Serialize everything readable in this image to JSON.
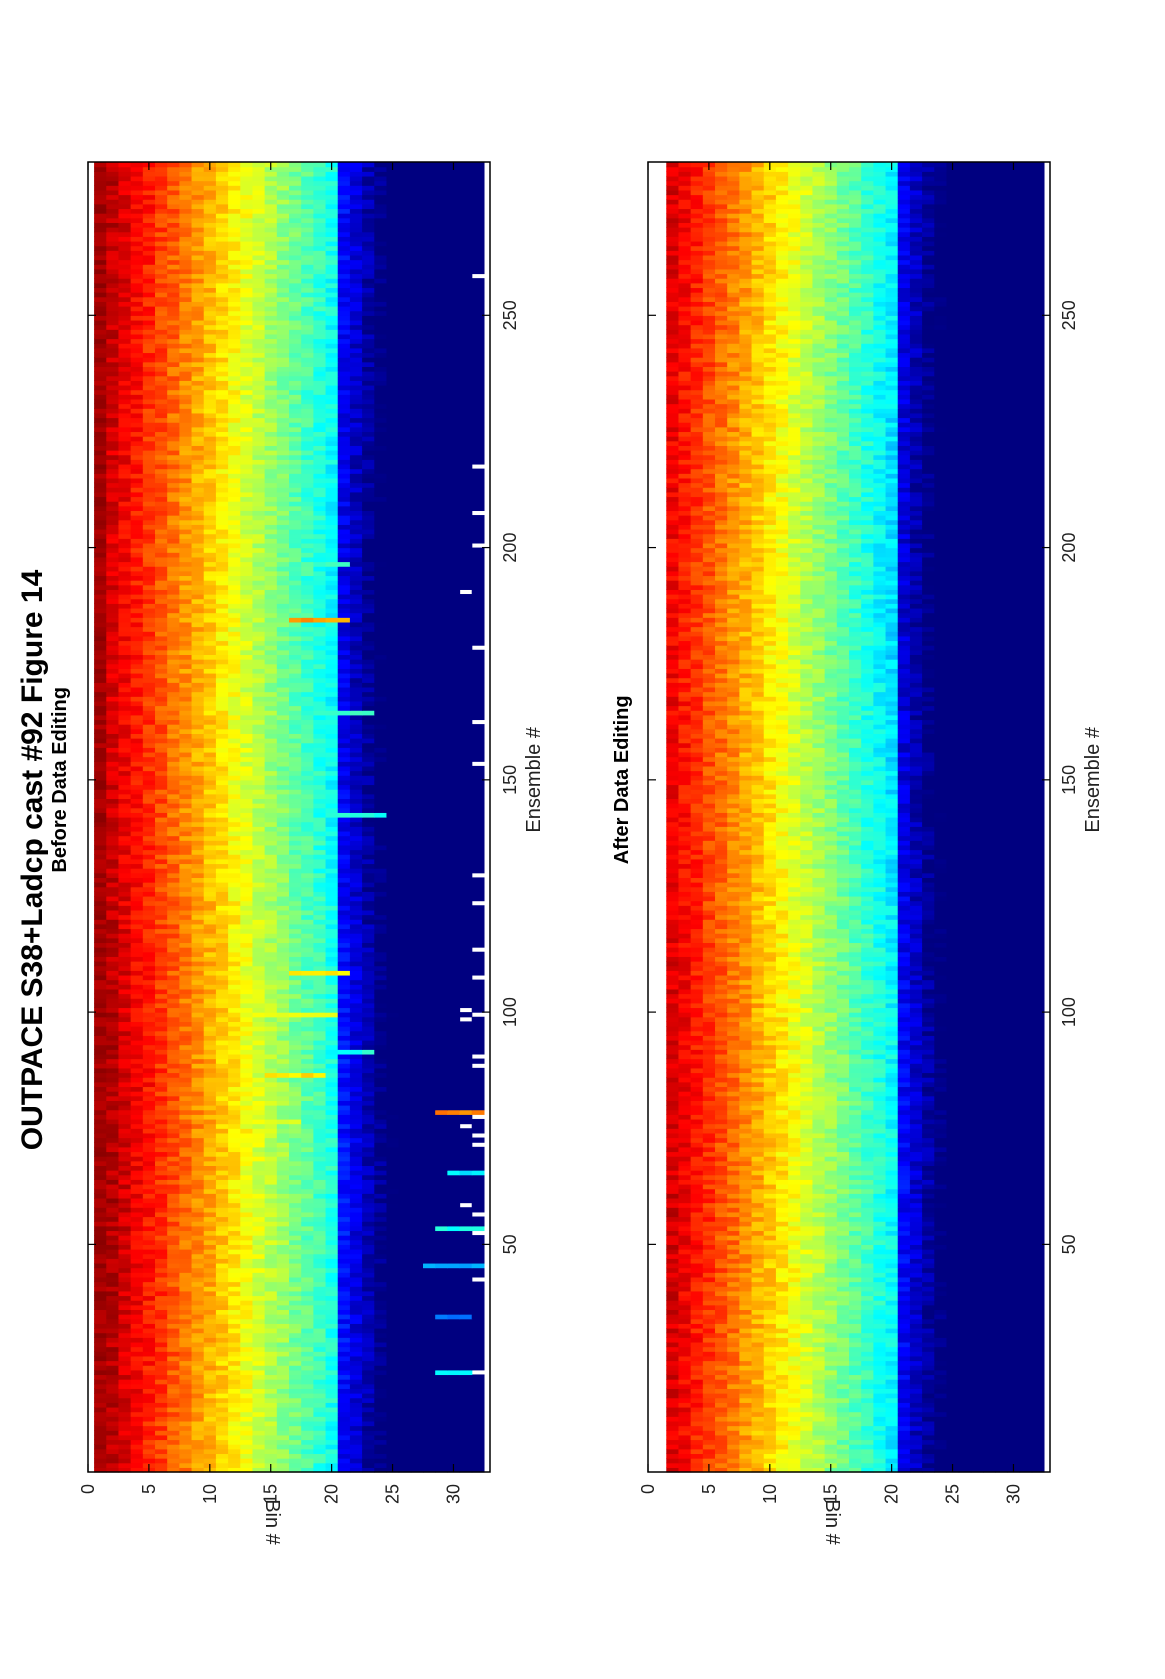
{
  "title": "OUTPACE S38+Ladcp cast #92  Figure 14",
  "chart_data": [
    {
      "type": "heatmap",
      "title": "Before Data Editing",
      "xlabel": "Ensemble #",
      "ylabel": "Bin #",
      "xlim": [
        1,
        283
      ],
      "ylim": [
        0,
        33
      ],
      "xticks": [
        "50",
        "100",
        "150",
        "200",
        "250"
      ],
      "yticks": [
        "0",
        "5",
        "10",
        "15",
        "20",
        "25",
        "30"
      ],
      "colormap": "jet",
      "bins": [
        1,
        32
      ],
      "ensembles": [
        1,
        283
      ],
      "description_values": {
        "bin_1_level": 0.96,
        "bin_1_stripe_level": 0.99,
        "decay_per_bin": 0.03,
        "background_level": 0.08
      },
      "anomalies": [
        {
          "ensemble": 22,
          "bin_from": 29,
          "bin_to": 32,
          "level": 0.35
        },
        {
          "ensemble": 34,
          "bin_from": 29,
          "bin_to": 31,
          "level": 0.25
        },
        {
          "ensemble": 45,
          "bin_from": 28,
          "bin_to": 32,
          "level": 0.3
        },
        {
          "ensemble": 53,
          "bin_from": 29,
          "bin_to": 32,
          "level": 0.4
        },
        {
          "ensemble": 65,
          "bin_from": 30,
          "bin_to": 32,
          "level": 0.35
        },
        {
          "ensemble": 76,
          "bin_from": 14,
          "bin_to": 17,
          "level": 0.6
        },
        {
          "ensemble": 78,
          "bin_from": 29,
          "bin_to": 32,
          "level": 0.75
        },
        {
          "ensemble": 86,
          "bin_from": 15,
          "bin_to": 19,
          "level": 0.65
        },
        {
          "ensemble": 91,
          "bin_from": 21,
          "bin_to": 23,
          "level": 0.4
        },
        {
          "ensemble": 99,
          "bin_from": 15,
          "bin_to": 20,
          "level": 0.6
        },
        {
          "ensemble": 108,
          "bin_from": 17,
          "bin_to": 21,
          "level": 0.65
        },
        {
          "ensemble": 142,
          "bin_from": 20,
          "bin_to": 24,
          "level": 0.4
        },
        {
          "ensemble": 164,
          "bin_from": 18,
          "bin_to": 23,
          "level": 0.42
        },
        {
          "ensemble": 184,
          "bin_from": 17,
          "bin_to": 21,
          "level": 0.72
        },
        {
          "ensemble": 196,
          "bin_from": 18,
          "bin_to": 21,
          "level": 0.45
        }
      ],
      "missing": [
        {
          "ensemble": 22,
          "bin": 32
        },
        {
          "ensemble": 42,
          "bin": 32
        },
        {
          "ensemble": 52,
          "bin": 32
        },
        {
          "ensemble": 56,
          "bin": 32
        },
        {
          "ensemble": 58,
          "bin": 31
        },
        {
          "ensemble": 71,
          "bin": 32
        },
        {
          "ensemble": 73,
          "bin": 32
        },
        {
          "ensemble": 75,
          "bin": 31
        },
        {
          "ensemble": 77,
          "bin": 32
        },
        {
          "ensemble": 88,
          "bin": 32
        },
        {
          "ensemble": 90,
          "bin": 32
        },
        {
          "ensemble": 98,
          "bin": 31
        },
        {
          "ensemble": 99,
          "bin": 32
        },
        {
          "ensemble": 100,
          "bin": 31
        },
        {
          "ensemble": 107,
          "bin": 32
        },
        {
          "ensemble": 113,
          "bin": 32
        },
        {
          "ensemble": 123,
          "bin": 32
        },
        {
          "ensemble": 129,
          "bin": 32
        },
        {
          "ensemble": 153,
          "bin": 32
        },
        {
          "ensemble": 162,
          "bin": 32
        },
        {
          "ensemble": 178,
          "bin": 32
        },
        {
          "ensemble": 190,
          "bin": 31
        },
        {
          "ensemble": 200,
          "bin": 32
        },
        {
          "ensemble": 207,
          "bin": 32
        },
        {
          "ensemble": 217,
          "bin": 32
        },
        {
          "ensemble": 258,
          "bin": 32
        }
      ]
    },
    {
      "type": "heatmap",
      "title": "After Data Editing",
      "xlabel": "Ensemble #",
      "ylabel": "Bin #",
      "xlim": [
        1,
        283
      ],
      "ylim": [
        0,
        33
      ],
      "xticks": [
        "50",
        "100",
        "150",
        "200",
        "250"
      ],
      "yticks": [
        "0",
        "5",
        "10",
        "15",
        "20",
        "25",
        "30"
      ],
      "colormap": "jet",
      "bins": [
        2,
        32
      ],
      "ensembles": [
        1,
        283
      ],
      "description_values": {
        "bin_2_level": 0.9,
        "decay_per_bin": 0.03,
        "background_level": 0.08
      }
    }
  ]
}
